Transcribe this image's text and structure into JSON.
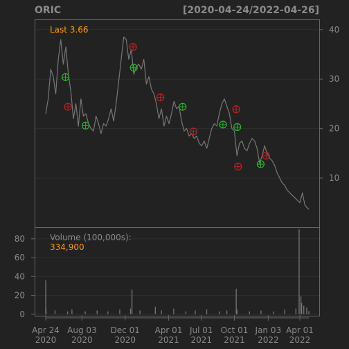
{
  "chart_data": {
    "type": "line",
    "title": "ORIC",
    "date_range": "[2020-04-24/2022-04-26]",
    "last_label": "Last 3.66",
    "colors": {
      "background": "#222222",
      "price_line": "#777777",
      "accent_text": "#ff9900",
      "buy_marker": "#22bb22",
      "sell_marker": "#bb2222",
      "grid": "#2f2f2f",
      "axis_text": "#8a8a8a"
    },
    "price_axis": {
      "ylim": [
        0,
        42
      ],
      "ticks": [
        "10",
        "20",
        "30",
        "40"
      ],
      "tick_values": [
        10,
        20,
        30,
        40
      ]
    },
    "volume_axis": {
      "ylim": [
        -2,
        92
      ],
      "ticks": [
        "0",
        "20",
        "40",
        "60",
        "80"
      ],
      "tick_values": [
        0,
        20,
        40,
        60,
        80
      ]
    },
    "volume_label": "Volume (100,000s):",
    "volume_value": "334,900",
    "x_axis": {
      "range": [
        "2020-04-24",
        "2022-04-26"
      ],
      "ticks": [
        {
          "date": "2020-04-24",
          "line1": "Apr 24",
          "line2": "2020"
        },
        {
          "date": "2020-08-03",
          "line1": "Aug 03",
          "line2": "2020"
        },
        {
          "date": "2020-12-01",
          "line1": "Dec 01",
          "line2": "2020"
        },
        {
          "date": "2021-04-01",
          "line1": "Apr 01",
          "line2": "2021"
        },
        {
          "date": "2021-07-01",
          "line1": "Jul 01",
          "line2": "2021"
        },
        {
          "date": "2021-10-01",
          "line1": "Oct 01",
          "line2": "2021"
        },
        {
          "date": "2022-01-03",
          "line1": "Jan 03",
          "line2": "2022"
        },
        {
          "date": "2022-04-01",
          "line1": "Apr 01",
          "line2": "2022"
        }
      ]
    },
    "price_series": {
      "dates": [
        "2020-04-24",
        "2020-05-01",
        "2020-05-08",
        "2020-05-15",
        "2020-05-22",
        "2020-05-29",
        "2020-06-05",
        "2020-06-12",
        "2020-06-19",
        "2020-06-26",
        "2020-07-03",
        "2020-07-10",
        "2020-07-17",
        "2020-07-24",
        "2020-07-31",
        "2020-08-07",
        "2020-08-14",
        "2020-08-21",
        "2020-08-28",
        "2020-09-04",
        "2020-09-11",
        "2020-09-18",
        "2020-09-25",
        "2020-10-02",
        "2020-10-09",
        "2020-10-16",
        "2020-10-23",
        "2020-10-30",
        "2020-11-06",
        "2020-11-13",
        "2020-11-20",
        "2020-11-27",
        "2020-12-04",
        "2020-12-11",
        "2020-12-18",
        "2020-12-25",
        "2021-01-01",
        "2021-01-08",
        "2021-01-15",
        "2021-01-22",
        "2021-01-29",
        "2021-02-05",
        "2021-02-12",
        "2021-02-19",
        "2021-02-26",
        "2021-03-05",
        "2021-03-12",
        "2021-03-19",
        "2021-03-26",
        "2021-04-02",
        "2021-04-09",
        "2021-04-16",
        "2021-04-23",
        "2021-04-30",
        "2021-05-07",
        "2021-05-14",
        "2021-05-21",
        "2021-05-28",
        "2021-06-04",
        "2021-06-11",
        "2021-06-18",
        "2021-06-25",
        "2021-07-02",
        "2021-07-09",
        "2021-07-16",
        "2021-07-23",
        "2021-07-30",
        "2021-08-06",
        "2021-08-13",
        "2021-08-20",
        "2021-08-27",
        "2021-09-03",
        "2021-09-10",
        "2021-09-17",
        "2021-09-24",
        "2021-10-01",
        "2021-10-08",
        "2021-10-15",
        "2021-10-22",
        "2021-10-29",
        "2021-11-05",
        "2021-11-12",
        "2021-11-19",
        "2021-11-26",
        "2021-12-03",
        "2021-12-10",
        "2021-12-17",
        "2021-12-24",
        "2021-12-31",
        "2022-01-07",
        "2022-01-14",
        "2022-01-21",
        "2022-01-28",
        "2022-02-04",
        "2022-02-11",
        "2022-02-18",
        "2022-02-25",
        "2022-03-04",
        "2022-03-11",
        "2022-03-18",
        "2022-03-25",
        "2022-04-01",
        "2022-04-08",
        "2022-04-15",
        "2022-04-26"
      ],
      "values": [
        23.0,
        26.0,
        32.0,
        30.5,
        27.0,
        34.0,
        38.0,
        33.0,
        36.5,
        31.0,
        27.5,
        22.0,
        25.0,
        20.5,
        26.0,
        22.5,
        23.0,
        21.0,
        20.0,
        19.5,
        22.5,
        21.0,
        19.0,
        21.0,
        20.5,
        22.0,
        24.0,
        21.5,
        25.0,
        29.5,
        34.0,
        38.5,
        38.0,
        34.0,
        36.0,
        31.0,
        32.5,
        33.0,
        32.0,
        34.0,
        29.0,
        30.5,
        28.0,
        27.0,
        25.0,
        22.0,
        24.0,
        20.5,
        22.5,
        21.0,
        23.0,
        25.5,
        24.0,
        24.5,
        21.5,
        19.5,
        20.0,
        18.5,
        19.0,
        18.0,
        18.5,
        17.0,
        16.5,
        17.5,
        16.0,
        18.0,
        20.0,
        21.0,
        20.5,
        23.0,
        25.0,
        26.0,
        24.5,
        23.0,
        20.0,
        19.5,
        14.5,
        17.0,
        17.5,
        16.0,
        15.5,
        17.0,
        18.0,
        17.5,
        16.0,
        13.0,
        14.5,
        16.5,
        15.0,
        14.0,
        13.5,
        12.5,
        11.0,
        10.0,
        9.0,
        8.5,
        7.5,
        7.0,
        6.5,
        6.0,
        5.5,
        5.0,
        7.0,
        4.5,
        3.66
      ]
    },
    "signals": [
      {
        "type": "buy",
        "date": "2020-06-18",
        "value": 30.4
      },
      {
        "type": "sell",
        "date": "2020-06-25",
        "value": 24.4
      },
      {
        "type": "buy",
        "date": "2020-08-13",
        "value": 20.6
      },
      {
        "type": "sell",
        "date": "2020-12-23",
        "value": 36.5
      },
      {
        "type": "buy",
        "date": "2020-12-25",
        "value": 32.3
      },
      {
        "type": "sell",
        "date": "2021-03-09",
        "value": 26.3
      },
      {
        "type": "buy",
        "date": "2021-05-10",
        "value": 24.4
      },
      {
        "type": "sell",
        "date": "2021-06-09",
        "value": 19.4
      },
      {
        "type": "buy",
        "date": "2021-08-30",
        "value": 20.8
      },
      {
        "type": "sell",
        "date": "2021-10-06",
        "value": 23.9
      },
      {
        "type": "buy",
        "date": "2021-10-09",
        "value": 20.3
      },
      {
        "type": "sell",
        "date": "2021-10-11",
        "value": 12.3
      },
      {
        "type": "buy",
        "date": "2021-12-13",
        "value": 12.8
      },
      {
        "type": "sell",
        "date": "2021-12-28",
        "value": 14.5
      }
    ],
    "volume_series": {
      "dates": [
        "2020-04-24",
        "2020-04-25",
        "2020-05-20",
        "2020-06-24",
        "2020-07-06",
        "2020-08-12",
        "2020-09-14",
        "2020-10-14",
        "2020-11-16",
        "2020-12-16",
        "2020-12-20",
        "2021-01-11",
        "2021-02-23",
        "2021-03-12",
        "2021-04-15",
        "2021-05-19",
        "2021-06-14",
        "2021-07-16",
        "2021-08-20",
        "2021-09-10",
        "2021-10-06",
        "2021-10-08",
        "2021-11-12",
        "2021-12-14",
        "2022-01-18",
        "2022-02-18",
        "2022-03-21",
        "2022-03-30",
        "2022-04-04",
        "2022-04-06",
        "2022-04-12",
        "2022-04-20",
        "2022-04-26"
      ],
      "values": [
        36,
        6,
        4,
        3,
        5,
        3,
        4,
        3,
        5,
        6,
        26,
        4,
        8,
        4,
        6,
        3,
        4,
        5,
        3,
        4,
        27,
        5,
        3,
        4,
        3,
        5,
        6,
        90,
        19,
        12,
        9,
        7,
        3.3
      ]
    }
  }
}
